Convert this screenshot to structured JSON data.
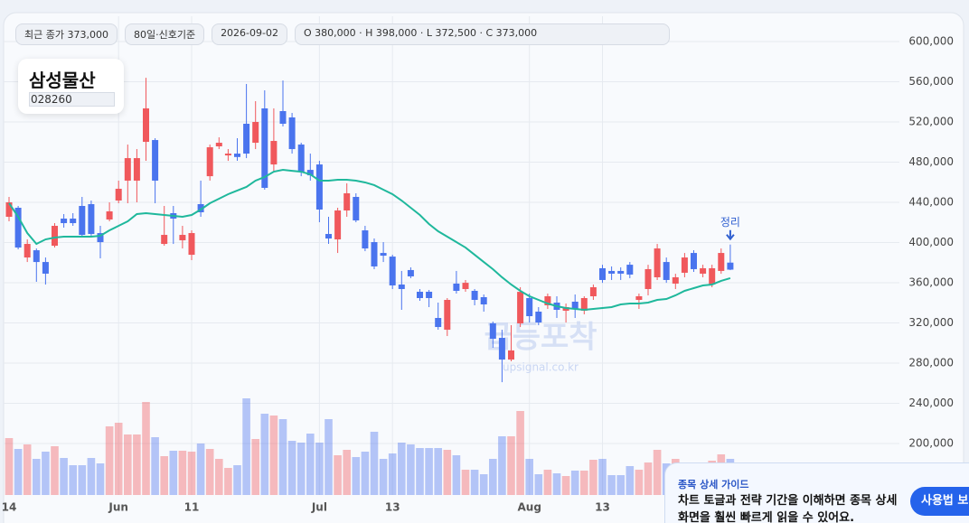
{
  "chart_data": {
    "type": "candlestick",
    "title": "삼성물산",
    "subtitle": "028260",
    "info": [
      "최근 종가 373,000",
      "80일·신호기준",
      "2026-09-02",
      "O 380,000 · H 398,000 · L 372,500 · C 373,000"
    ],
    "watermark": "급등포착",
    "watermark_url": "upsignal.co.kr",
    "annotation": "정리",
    "categories": [
      "14",
      null,
      null,
      null,
      null,
      null,
      null,
      null,
      null,
      null,
      null,
      null,
      "Jun",
      null,
      null,
      null,
      null,
      null,
      null,
      null,
      "11",
      null,
      null,
      null,
      null,
      null,
      null,
      null,
      null,
      null,
      null,
      null,
      null,
      null,
      "Jul",
      null,
      null,
      null,
      null,
      null,
      null,
      null,
      "13",
      null,
      null,
      null,
      null,
      null,
      null,
      null,
      null,
      null,
      null,
      null,
      null,
      null,
      null,
      "Aug",
      null,
      null,
      null,
      null,
      null,
      null,
      null,
      "13",
      null,
      null,
      null,
      null,
      null,
      null,
      null,
      null,
      null,
      null,
      null,
      null,
      null,
      null
    ],
    "open": [
      425600,
      434600,
      385100,
      392300,
      380600,
      396800,
      423800,
      423800,
      436400,
      438200,
      409400,
      422900,
      441800,
      461600,
      461600,
      500200,
      502000,
      398600,
      429200,
      402200,
      387800,
      438200,
      466000,
      495700,
      486700,
      488500,
      518200,
      499300,
      533500,
      477700,
      530800,
      524500,
      497500,
      472300,
      477700,
      408500,
      403100,
      431900,
      445400,
      412100,
      400400,
      389600,
      386000,
      358200,
      372600,
      351000,
      351000,
      324900,
      313200,
      359100,
      353700,
      351900,
      345600,
      319500,
      305100,
      283500,
      319500,
      344700,
      331200,
      337500,
      340200,
      332100,
      341100,
      332100,
      346500,
      374400,
      371700,
      371700,
      377900,
      342900,
      353700,
      365400,
      380600,
      359100,
      369900,
      389600,
      369000,
      358200,
      371700,
      380000
    ],
    "high": [
      445400,
      436400,
      403100,
      394100,
      385100,
      419300,
      428300,
      429200,
      445400,
      441800,
      416600,
      440000,
      461600,
      497500,
      493000,
      564000,
      503800,
      436400,
      436400,
      416600,
      412100,
      461600,
      497500,
      504700,
      493000,
      503800,
      557800,
      540700,
      551500,
      533500,
      561300,
      529000,
      499300,
      488500,
      481300,
      425600,
      434600,
      458900,
      449000,
      416600,
      404000,
      400400,
      387800,
      371700,
      375300,
      353700,
      352800,
      340200,
      344700,
      371700,
      362700,
      353700,
      348300,
      321300,
      313200,
      317700,
      355500,
      349200,
      335700,
      349200,
      346500,
      339300,
      348300,
      346500,
      358200,
      377900,
      376200,
      375300,
      380600,
      349200,
      377900,
      398600,
      385100,
      368900,
      389600,
      392300,
      377900,
      377900,
      394100,
      398000
    ],
    "low": [
      421100,
      393200,
      380600,
      360900,
      358200,
      395000,
      414800,
      416600,
      405800,
      405800,
      384200,
      421100,
      439100,
      439100,
      440000,
      481300,
      439100,
      396800,
      398600,
      394100,
      382400,
      425600,
      461600,
      493000,
      481300,
      481300,
      484000,
      493000,
      452600,
      470500,
      515500,
      488500,
      466000,
      461600,
      420200,
      398600,
      389600,
      425600,
      420200,
      391400,
      373500,
      380600,
      353700,
      333000,
      364500,
      342000,
      335700,
      313200,
      306900,
      349200,
      351000,
      337500,
      331200,
      295300,
      261000,
      281800,
      315900,
      320400,
      317700,
      333900,
      324900,
      320400,
      324900,
      328500,
      342900,
      359900,
      362700,
      362700,
      364500,
      333900,
      347400,
      362700,
      359900,
      353700,
      365400,
      370800,
      365400,
      355500,
      368900,
      372500
    ],
    "close": [
      440000,
      395000,
      398600,
      380600,
      369000,
      416600,
      419300,
      419300,
      407600,
      408500,
      400400,
      431000,
      453500,
      484000,
      484000,
      533500,
      461600,
      407600,
      423800,
      407600,
      409400,
      430100,
      494800,
      499300,
      488500,
      485100,
      488500,
      520000,
      454400,
      501100,
      518200,
      493000,
      470500,
      466900,
      432800,
      404000,
      431900,
      449000,
      422000,
      394100,
      376200,
      386900,
      357300,
      353700,
      366300,
      344700,
      344700,
      315900,
      342900,
      351900,
      359900,
      342900,
      338400,
      304200,
      283500,
      292600,
      350900,
      326700,
      320400,
      346500,
      333000,
      335700,
      333900,
      344700,
      355500,
      362700,
      369000,
      369000,
      368100,
      346500,
      373500,
      394100,
      362700,
      365400,
      385100,
      373500,
      374400,
      374400,
      389600,
      373000
    ],
    "ma": {
      "color": "#1fb89c",
      "values": [
        439100,
        425600,
        409400,
        398600,
        403100,
        404900,
        405800,
        405800,
        405800,
        405800,
        406700,
        412100,
        416600,
        421100,
        428300,
        429200,
        428300,
        427400,
        426500,
        425600,
        427400,
        432800,
        439100,
        443600,
        448100,
        451700,
        455300,
        461600,
        465200,
        470500,
        472300,
        471400,
        470500,
        467800,
        461600,
        461600,
        462500,
        462500,
        461600,
        459800,
        457100,
        452600,
        448100,
        441800,
        434600,
        427400,
        418400,
        411200,
        405800,
        400400,
        395000,
        387800,
        380600,
        373500,
        365400,
        358200,
        351900,
        346500,
        342900,
        339300,
        336600,
        334800,
        333900,
        333000,
        333900,
        334800,
        335700,
        338400,
        339300,
        339300,
        340200,
        342900,
        343800,
        347400,
        351900,
        354600,
        357300,
        358200,
        361800,
        364500
      ]
    },
    "volume": [
      63,
      51,
      56,
      40,
      48,
      54,
      41,
      33,
      33,
      41,
      35,
      76,
      80,
      67,
      67,
      103,
      64,
      43,
      49,
      49,
      48,
      57,
      51,
      40,
      30,
      33,
      107,
      62,
      90,
      88,
      84,
      60,
      58,
      68,
      58,
      84,
      44,
      50,
      42,
      48,
      70,
      40,
      46,
      58,
      56,
      52,
      52,
      52,
      50,
      44,
      28,
      28,
      23,
      40,
      65,
      65,
      93,
      40,
      23,
      28,
      24,
      21,
      27,
      27,
      39,
      40,
      22,
      22,
      32,
      28,
      36,
      50,
      35,
      40,
      30,
      35,
      30,
      38,
      45,
      40
    ],
    "up_color": "#f0585c",
    "down_color": "#4a74ee",
    "ylim": [
      148700,
      625200
    ],
    "yticks": [
      {
        "value": 600000,
        "label": "600,000"
      },
      {
        "value": 560000,
        "label": "560,000"
      },
      {
        "value": 520000,
        "label": "520,000"
      },
      {
        "value": 480000,
        "label": "480,000"
      },
      {
        "value": 440000,
        "label": "440,000"
      },
      {
        "value": 400000,
        "label": "400,000"
      },
      {
        "value": 360000,
        "label": "360,000"
      },
      {
        "value": 320000,
        "label": "320,000"
      },
      {
        "value": 280000,
        "label": "280,000"
      },
      {
        "value": 240000,
        "label": "240,000"
      },
      {
        "value": 200000,
        "label": "200,000"
      }
    ],
    "grid": true
  },
  "guide": {
    "title": "종목 상세 가이드",
    "body": "차트 토글과 전략 기간을 이해하면 종목 상세 화면을 훨씬 빠르게 읽을 수 있어요.",
    "button": "사용법 보기"
  }
}
